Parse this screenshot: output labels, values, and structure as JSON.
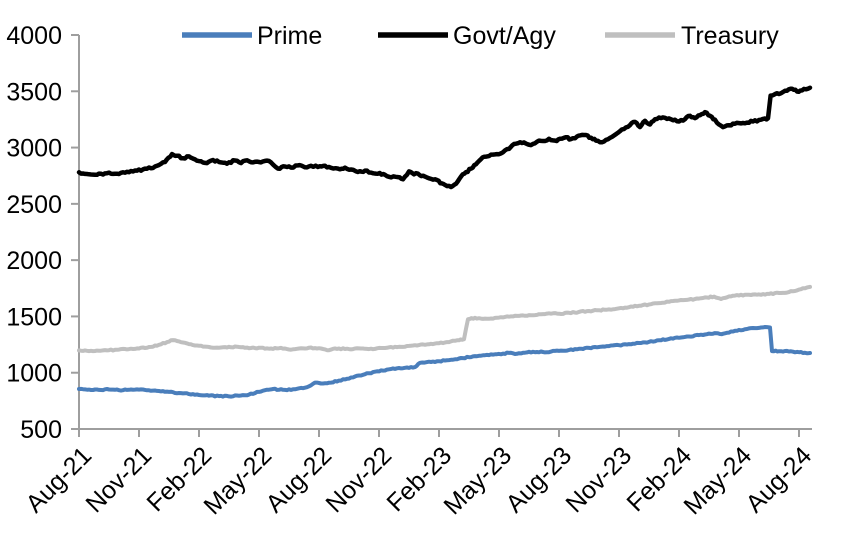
{
  "page": {
    "background": "#ffffff"
  },
  "chart_data": {
    "type": "line",
    "title": "",
    "xlabel": "",
    "ylabel": "",
    "grid": false,
    "legend_position": "top",
    "legend": [
      {
        "label": "Prime",
        "color": "#4a7ebb"
      },
      {
        "label": "Govt/Agy",
        "color": "#000000"
      },
      {
        "label": "Treasury",
        "color": "#bfbfbf"
      }
    ],
    "style": {
      "axis_color": "#9e9e9e",
      "label_color": "#000000"
    },
    "x_axis": {
      "tick_labels": [
        "Aug-21",
        "Nov-21",
        "Feb-22",
        "May-22",
        "Aug-22",
        "Nov-22",
        "Feb-23",
        "May-23",
        "Aug-23",
        "Nov-23",
        "Feb-24",
        "May-24",
        "Aug-24"
      ],
      "months_per_tick": 3,
      "label_angle_deg": -45,
      "range_months": [
        0,
        36.55
      ]
    },
    "y_axis": {
      "min": 500,
      "max": 4000,
      "step": 500,
      "ticks": [
        4000,
        3500,
        3000,
        2500,
        2000,
        1500,
        1000,
        500
      ]
    },
    "series": [
      {
        "name": "Prime",
        "color": "#4a7ebb",
        "width": 4,
        "jitter": 5,
        "seed": 1,
        "points": [
          [
            0,
            855
          ],
          [
            0.5,
            850
          ],
          [
            1,
            847
          ],
          [
            1.5,
            851
          ],
          [
            2,
            845
          ],
          [
            2.5,
            848
          ],
          [
            3,
            850
          ],
          [
            3.5,
            844
          ],
          [
            4,
            838
          ],
          [
            4.5,
            830
          ],
          [
            5,
            820
          ],
          [
            5.5,
            810
          ],
          [
            6,
            802
          ],
          [
            6.5,
            796
          ],
          [
            7,
            792
          ],
          [
            7.5,
            790
          ],
          [
            8,
            796
          ],
          [
            8.5,
            806
          ],
          [
            9,
            830
          ],
          [
            9.3,
            845
          ],
          [
            9.7,
            855
          ],
          [
            10.2,
            848
          ],
          [
            10.7,
            853
          ],
          [
            11.2,
            862
          ],
          [
            11.6,
            888
          ],
          [
            11.8,
            912
          ],
          [
            12.2,
            904
          ],
          [
            12.6,
            912
          ],
          [
            13,
            930
          ],
          [
            13.5,
            948
          ],
          [
            14,
            975
          ],
          [
            14.5,
            995
          ],
          [
            15,
            1012
          ],
          [
            15.5,
            1030
          ],
          [
            16,
            1042
          ],
          [
            16.4,
            1046
          ],
          [
            16.8,
            1050
          ],
          [
            17.05,
            1088
          ],
          [
            17.4,
            1094
          ],
          [
            18,
            1102
          ],
          [
            18.5,
            1112
          ],
          [
            19,
            1126
          ],
          [
            19.5,
            1138
          ],
          [
            20,
            1150
          ],
          [
            20.4,
            1158
          ],
          [
            20.8,
            1164
          ],
          [
            21.2,
            1170
          ],
          [
            21.5,
            1176
          ],
          [
            21.9,
            1168
          ],
          [
            22.3,
            1178
          ],
          [
            22.7,
            1186
          ],
          [
            23.2,
            1184
          ],
          [
            23.6,
            1188
          ],
          [
            24,
            1194
          ],
          [
            24.5,
            1202
          ],
          [
            25,
            1212
          ],
          [
            25.5,
            1220
          ],
          [
            26,
            1228
          ],
          [
            26.5,
            1236
          ],
          [
            27,
            1244
          ],
          [
            27.5,
            1254
          ],
          [
            28,
            1264
          ],
          [
            28.5,
            1274
          ],
          [
            29,
            1288
          ],
          [
            29.5,
            1300
          ],
          [
            30,
            1310
          ],
          [
            30.5,
            1322
          ],
          [
            31,
            1334
          ],
          [
            31.4,
            1342
          ],
          [
            31.8,
            1352
          ],
          [
            32.05,
            1344
          ],
          [
            32.3,
            1350
          ],
          [
            32.6,
            1366
          ],
          [
            33,
            1380
          ],
          [
            33.4,
            1388
          ],
          [
            33.8,
            1396
          ],
          [
            34.1,
            1402
          ],
          [
            34.4,
            1405
          ],
          [
            34.55,
            1402
          ],
          [
            34.65,
            1192
          ],
          [
            35,
            1191
          ],
          [
            35.3,
            1193
          ],
          [
            35.7,
            1187
          ],
          [
            36,
            1182
          ],
          [
            36.3,
            1177
          ],
          [
            36.55,
            1175
          ]
        ]
      },
      {
        "name": "Govt/Agy",
        "color": "#000000",
        "width": 4.5,
        "jitter": 9,
        "seed": 2,
        "points": [
          [
            0,
            2780
          ],
          [
            0.4,
            2765
          ],
          [
            0.9,
            2758
          ],
          [
            1.4,
            2772
          ],
          [
            1.9,
            2768
          ],
          [
            2.4,
            2785
          ],
          [
            2.9,
            2795
          ],
          [
            3.4,
            2812
          ],
          [
            3.9,
            2838
          ],
          [
            4.3,
            2872
          ],
          [
            4.65,
            2942
          ],
          [
            4.9,
            2928
          ],
          [
            5.2,
            2905
          ],
          [
            5.5,
            2922
          ],
          [
            5.8,
            2895
          ],
          [
            6.1,
            2878
          ],
          [
            6.4,
            2862
          ],
          [
            6.7,
            2890
          ],
          [
            7,
            2872
          ],
          [
            7.4,
            2857
          ],
          [
            7.8,
            2885
          ],
          [
            8.1,
            2862
          ],
          [
            8.4,
            2887
          ],
          [
            8.7,
            2868
          ],
          [
            9,
            2872
          ],
          [
            9.3,
            2882
          ],
          [
            9.6,
            2868
          ],
          [
            9.95,
            2813
          ],
          [
            10.3,
            2832
          ],
          [
            10.6,
            2822
          ],
          [
            10.95,
            2842
          ],
          [
            11.3,
            2825
          ],
          [
            11.6,
            2838
          ],
          [
            11.95,
            2827
          ],
          [
            12.3,
            2838
          ],
          [
            12.6,
            2820
          ],
          [
            12.95,
            2813
          ],
          [
            13.3,
            2822
          ],
          [
            13.6,
            2805
          ],
          [
            13.95,
            2783
          ],
          [
            14.3,
            2795
          ],
          [
            14.6,
            2778
          ],
          [
            14.95,
            2768
          ],
          [
            15.3,
            2758
          ],
          [
            15.6,
            2735
          ],
          [
            15.95,
            2738
          ],
          [
            16.2,
            2718
          ],
          [
            16.5,
            2788
          ],
          [
            16.75,
            2762
          ],
          [
            16.95,
            2768
          ],
          [
            17.3,
            2742
          ],
          [
            17.6,
            2722
          ],
          [
            17.9,
            2712
          ],
          [
            18.15,
            2682
          ],
          [
            18.4,
            2658
          ],
          [
            18.6,
            2650
          ],
          [
            18.85,
            2678
          ],
          [
            19.1,
            2742
          ],
          [
            19.35,
            2782
          ],
          [
            19.6,
            2812
          ],
          [
            19.85,
            2852
          ],
          [
            20.1,
            2898
          ],
          [
            20.35,
            2920
          ],
          [
            20.6,
            2938
          ],
          [
            20.9,
            2942
          ],
          [
            21.2,
            2958
          ],
          [
            21.5,
            2988
          ],
          [
            21.75,
            3032
          ],
          [
            22.05,
            3048
          ],
          [
            22.35,
            3035
          ],
          [
            22.6,
            3022
          ],
          [
            22.9,
            3052
          ],
          [
            23.2,
            3058
          ],
          [
            23.5,
            3078
          ],
          [
            23.8,
            3062
          ],
          [
            24.05,
            3078
          ],
          [
            24.35,
            3092
          ],
          [
            24.6,
            3075
          ],
          [
            24.9,
            3098
          ],
          [
            25.05,
            3108
          ],
          [
            25.35,
            3112
          ],
          [
            25.6,
            3088
          ],
          [
            25.85,
            3062
          ],
          [
            26.05,
            3048
          ],
          [
            26.35,
            3068
          ],
          [
            26.65,
            3095
          ],
          [
            26.95,
            3132
          ],
          [
            27.25,
            3165
          ],
          [
            27.55,
            3200
          ],
          [
            27.8,
            3228
          ],
          [
            28.05,
            3182
          ],
          [
            28.3,
            3238
          ],
          [
            28.55,
            3205
          ],
          [
            28.8,
            3252
          ],
          [
            29.1,
            3262
          ],
          [
            29.4,
            3255
          ],
          [
            29.7,
            3242
          ],
          [
            30,
            3232
          ],
          [
            30.3,
            3252
          ],
          [
            30.55,
            3282
          ],
          [
            30.8,
            3262
          ],
          [
            31.05,
            3288
          ],
          [
            31.3,
            3315
          ],
          [
            31.55,
            3282
          ],
          [
            31.8,
            3248
          ],
          [
            32,
            3205
          ],
          [
            32.2,
            3182
          ],
          [
            32.5,
            3198
          ],
          [
            32.8,
            3212
          ],
          [
            33.1,
            3215
          ],
          [
            33.4,
            3222
          ],
          [
            33.7,
            3232
          ],
          [
            34,
            3245
          ],
          [
            34.3,
            3258
          ],
          [
            34.45,
            3260
          ],
          [
            34.58,
            3462
          ],
          [
            34.8,
            3475
          ],
          [
            35.1,
            3482
          ],
          [
            35.4,
            3505
          ],
          [
            35.65,
            3522
          ],
          [
            35.9,
            3498
          ],
          [
            36.15,
            3508
          ],
          [
            36.35,
            3518
          ],
          [
            36.55,
            3532
          ]
        ]
      },
      {
        "name": "Treasury",
        "color": "#bfbfbf",
        "width": 4,
        "jitter": 5,
        "seed": 3,
        "points": [
          [
            0,
            1198
          ],
          [
            0.5,
            1192
          ],
          [
            1,
            1196
          ],
          [
            1.5,
            1200
          ],
          [
            2,
            1205
          ],
          [
            2.5,
            1210
          ],
          [
            3,
            1215
          ],
          [
            3.5,
            1228
          ],
          [
            4,
            1248
          ],
          [
            4.4,
            1272
          ],
          [
            4.7,
            1290
          ],
          [
            5,
            1278
          ],
          [
            5.2,
            1268
          ],
          [
            5.6,
            1252
          ],
          [
            6,
            1240
          ],
          [
            6.5,
            1228
          ],
          [
            7,
            1222
          ],
          [
            7.5,
            1230
          ],
          [
            8,
            1228
          ],
          [
            8.5,
            1218
          ],
          [
            9,
            1222
          ],
          [
            9.5,
            1213
          ],
          [
            10,
            1218
          ],
          [
            10.4,
            1210
          ],
          [
            10.7,
            1208
          ],
          [
            11,
            1215
          ],
          [
            11.5,
            1222
          ],
          [
            12,
            1218
          ],
          [
            12.4,
            1200
          ],
          [
            12.7,
            1212
          ],
          [
            13,
            1215
          ],
          [
            13.5,
            1210
          ],
          [
            14,
            1216
          ],
          [
            14.5,
            1210
          ],
          [
            15,
            1220
          ],
          [
            15.5,
            1226
          ],
          [
            16,
            1230
          ],
          [
            16.5,
            1238
          ],
          [
            17,
            1245
          ],
          [
            17.5,
            1252
          ],
          [
            18,
            1262
          ],
          [
            18.6,
            1278
          ],
          [
            19,
            1288
          ],
          [
            19.25,
            1298
          ],
          [
            19.45,
            1475
          ],
          [
            19.8,
            1488
          ],
          [
            20.2,
            1478
          ],
          [
            20.6,
            1482
          ],
          [
            21,
            1490
          ],
          [
            21.5,
            1498
          ],
          [
            22,
            1505
          ],
          [
            22.5,
            1512
          ],
          [
            23,
            1520
          ],
          [
            23.5,
            1528
          ],
          [
            24,
            1524
          ],
          [
            24.5,
            1532
          ],
          [
            25,
            1540
          ],
          [
            25.5,
            1548
          ],
          [
            26,
            1555
          ],
          [
            26.5,
            1562
          ],
          [
            27,
            1572
          ],
          [
            27.5,
            1582
          ],
          [
            28,
            1594
          ],
          [
            28.5,
            1606
          ],
          [
            29,
            1618
          ],
          [
            29.5,
            1630
          ],
          [
            30,
            1642
          ],
          [
            30.5,
            1650
          ],
          [
            31,
            1658
          ],
          [
            31.4,
            1668
          ],
          [
            31.75,
            1676
          ],
          [
            32.1,
            1655
          ],
          [
            32.5,
            1678
          ],
          [
            33,
            1686
          ],
          [
            33.5,
            1692
          ],
          [
            34,
            1696
          ],
          [
            34.5,
            1700
          ],
          [
            35,
            1708
          ],
          [
            35.5,
            1716
          ],
          [
            36,
            1738
          ],
          [
            36.3,
            1750
          ],
          [
            36.55,
            1762
          ]
        ]
      }
    ]
  }
}
